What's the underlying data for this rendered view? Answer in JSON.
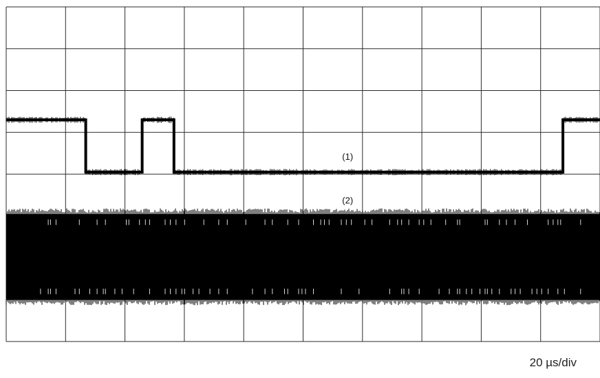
{
  "chart_data": {
    "type": "line",
    "title": "",
    "xlabel": "",
    "ylabel": "",
    "grid": true,
    "grid_divisions": {
      "horizontal": 10,
      "vertical": 8
    },
    "time_per_division": "20 µs/div",
    "x_unit": "µs",
    "xlim": [
      0,
      200
    ],
    "ylim": [
      0,
      8
    ],
    "y_unit": "div",
    "series": [
      {
        "name": "(1)",
        "kind": "digital",
        "high_level": 5.3,
        "low_level": 4.05,
        "points": [
          [
            0,
            5.3
          ],
          [
            26.8,
            5.3
          ],
          [
            26.8,
            4.05
          ],
          [
            45.8,
            4.05
          ],
          [
            45.8,
            5.3
          ],
          [
            56.5,
            5.3
          ],
          [
            56.5,
            4.05
          ],
          [
            187.5,
            4.05
          ],
          [
            187.5,
            5.3
          ],
          [
            200,
            5.3
          ]
        ]
      },
      {
        "name": "(2)",
        "kind": "dense-carrier",
        "top_level": 3.05,
        "bottom_level": 1.0,
        "x_start": 0,
        "x_end": 200
      }
    ]
  }
}
